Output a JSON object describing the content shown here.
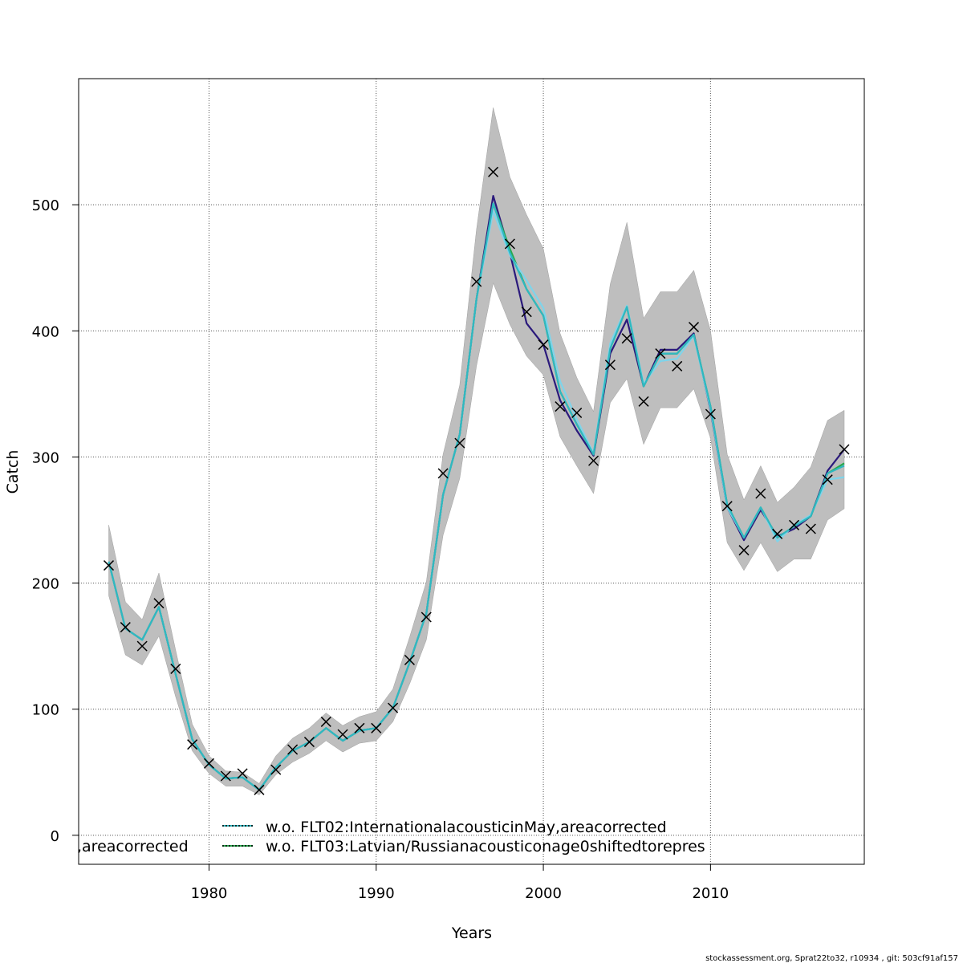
{
  "chart_data": {
    "type": "line",
    "xlabel": "Years",
    "ylabel": "Catch",
    "xlim": [
      1972.2,
      2019.2
    ],
    "ylim": [
      -23,
      600
    ],
    "x_ticks": [
      1980,
      1990,
      2000,
      2010
    ],
    "y_ticks": [
      0,
      100,
      200,
      300,
      400,
      500
    ],
    "grid": true,
    "x": [
      1974,
      1975,
      1976,
      1977,
      1978,
      1979,
      1980,
      1981,
      1982,
      1983,
      1984,
      1985,
      1986,
      1987,
      1988,
      1989,
      1990,
      1991,
      1992,
      1993,
      1994,
      1995,
      1996,
      1997,
      1998,
      1999,
      2000,
      2001,
      2002,
      2003,
      2004,
      2005,
      2006,
      2007,
      2008,
      2009,
      2010,
      2011,
      2012,
      2013,
      2014,
      2015,
      2016,
      2017,
      2018
    ],
    "band": {
      "lower": [
        190,
        143,
        135,
        158,
        110,
        67,
        49,
        39,
        39,
        32,
        48,
        58,
        65,
        75,
        66,
        73,
        75,
        90,
        120,
        155,
        238,
        283,
        372,
        438,
        405,
        380,
        365,
        316,
        293,
        271,
        343,
        362,
        310,
        339,
        339,
        354,
        315,
        232,
        210,
        232,
        209,
        219,
        219,
        250,
        259
      ],
      "upper": [
        246,
        185,
        171,
        208,
        147,
        88,
        63,
        51,
        50,
        41,
        63,
        77,
        85,
        97,
        87,
        94,
        98,
        116,
        157,
        201,
        302,
        357,
        480,
        577,
        522,
        492,
        465,
        398,
        363,
        336,
        437,
        486,
        410,
        431,
        431,
        448,
        400,
        302,
        266,
        293,
        264,
        276,
        292,
        329,
        337
      ]
    },
    "series": [
      {
        "name": "",
        "color": "#2b1a7c",
        "values": [
          217,
          164,
          155,
          181,
          128,
          76,
          56,
          45,
          46,
          36,
          54,
          67,
          74,
          85,
          75,
          83,
          85,
          101,
          137,
          176,
          270,
          318,
          425,
          507,
          462,
          406,
          389,
          345,
          321,
          301,
          382,
          409,
          356,
          385,
          385,
          398,
          337,
          260,
          234,
          258,
          237,
          243,
          253,
          289,
          306
        ]
      },
      {
        "name": "",
        "color": "#29a84e",
        "values": [
          217,
          164,
          155,
          181,
          128,
          76,
          56,
          45,
          46,
          36,
          54,
          67,
          74,
          85,
          75,
          83,
          85,
          101,
          137,
          176,
          270,
          318,
          425,
          501,
          465,
          433,
          412,
          352,
          326,
          302,
          386,
          419,
          356,
          382,
          382,
          397,
          340,
          262,
          236,
          260,
          236,
          245,
          253,
          287,
          295
        ]
      },
      {
        "name": "",
        "color": "#7fd4ea",
        "values": [
          217,
          164,
          155,
          181,
          128,
          76,
          56,
          45,
          46,
          36,
          54,
          67,
          74,
          85,
          75,
          83,
          85,
          101,
          137,
          176,
          270,
          318,
          425,
          495,
          460,
          440,
          418,
          360,
          330,
          303,
          390,
          420,
          358,
          376,
          378,
          396,
          338,
          260,
          236,
          260,
          233,
          246,
          254,
          282,
          284
        ]
      },
      {
        "name": "",
        "color": "#2fb8c0",
        "values": [
          217,
          164,
          155,
          181,
          128,
          76,
          56,
          45,
          46,
          36,
          54,
          67,
          74,
          85,
          75,
          83,
          85,
          101,
          137,
          176,
          270,
          318,
          425,
          501,
          462,
          433,
          412,
          352,
          326,
          302,
          386,
          419,
          356,
          382,
          382,
          397,
          340,
          262,
          236,
          260,
          236,
          245,
          253,
          287,
          293
        ]
      }
    ],
    "observed": {
      "marker": "×",
      "x": [
        1974,
        1975,
        1976,
        1977,
        1978,
        1979,
        1980,
        1981,
        1982,
        1983,
        1984,
        1985,
        1986,
        1987,
        1988,
        1989,
        1990,
        1991,
        1992,
        1993,
        1994,
        1995,
        1996,
        1997,
        1998,
        1999,
        2000,
        2001,
        2002,
        2003,
        2004,
        2005,
        2006,
        2007,
        2008,
        2009,
        2010,
        2011,
        2012,
        2013,
        2014,
        2015,
        2016,
        2017,
        2018
      ],
      "values": [
        214,
        165,
        150,
        184,
        132,
        72,
        57,
        47,
        49,
        36,
        52,
        68,
        74,
        90,
        80,
        85,
        85,
        101,
        139,
        173,
        287,
        311,
        439,
        526,
        469,
        415,
        389,
        340,
        335,
        297,
        373,
        394,
        344,
        382,
        372,
        403,
        334,
        261,
        226,
        271,
        239,
        246,
        243,
        282,
        306
      ]
    },
    "legend": [
      {
        "label": "w.o. FLT02:InternationalacousticinMay,areacorrected",
        "line_color": "#2fb8c0",
        "dash_color": "#000000"
      },
      {
        "label": "w.o. FLT03:Latvian/Russianacousticonage0shiftedtorepres",
        "line_color": "#29a84e",
        "dash_color": "#000000"
      }
    ],
    "legend_fragment": ",areacorrected"
  },
  "footer": "stockassessment.org, Sprat22to32, r10934 , git: 503cf91af157"
}
